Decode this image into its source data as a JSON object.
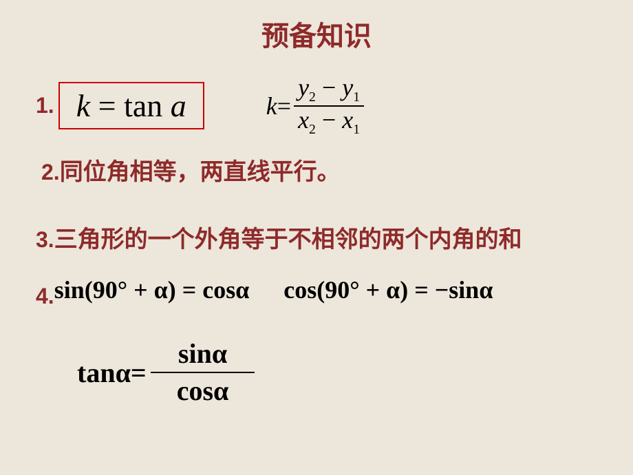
{
  "styling": {
    "background_color": "#ede6db",
    "title_color": "#8e2a2a",
    "accent_color": "#8e2a2a",
    "text_color": "#000000",
    "box_border_color": "#cc0000",
    "title_fontsize": 40,
    "label_fontsize": 32,
    "body_fontsize": 34,
    "boxed_fontsize": 46,
    "frac_fontsize": 36,
    "eq4_fontsize": 36,
    "eq5_fontsize": 40
  },
  "title": "预备知识",
  "items": {
    "n1": "1.",
    "n2": "2.",
    "n3": "3.",
    "n4": "4.",
    "boxed_k": "k",
    "boxed_eq": " = ",
    "boxed_tan": "tan",
    "boxed_a": " a",
    "slope_k": "k",
    "slope_eq": " = ",
    "y2": "y",
    "y2s": "2",
    "minus1": " − ",
    "y1": "y",
    "y1s": "1",
    "x2": "x",
    "x2s": "2",
    "minus2": " − ",
    "x1": "x",
    "x1s": "1",
    "line2": "同位角相等，两直线平行。",
    "line3": "三角形的一个外角等于不相邻的两个内角的和",
    "eq4a": "sin(90° + α) = cosα",
    "eq4b": "cos(90° + α) = −sinα",
    "eq5_lhs": "tanα",
    "eq5_eq": " = ",
    "eq5_num": "sinα",
    "eq5_den": "cosα"
  }
}
